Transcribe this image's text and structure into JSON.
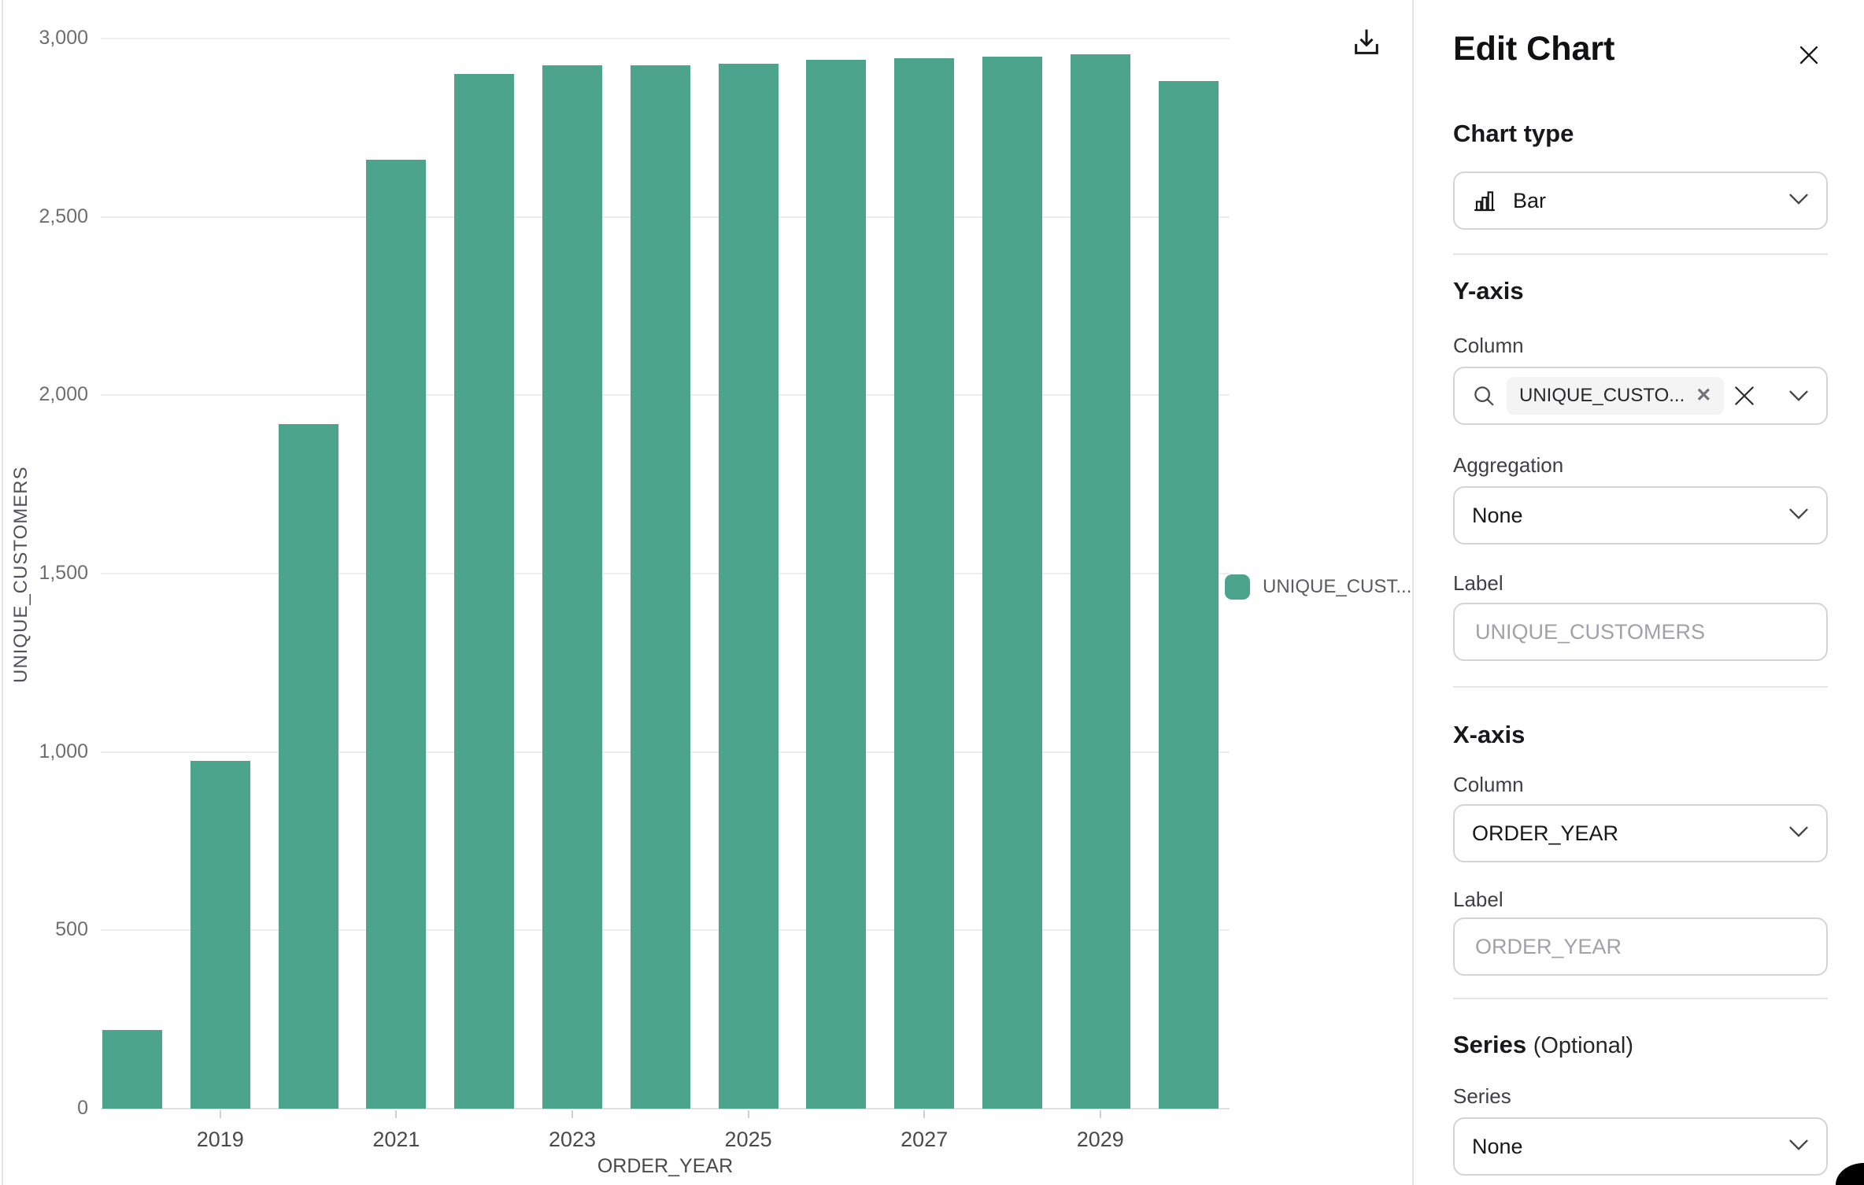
{
  "chart_data": {
    "type": "bar",
    "title": "",
    "xlabel": "ORDER_YEAR",
    "ylabel": "UNIQUE_CUSTOMERS",
    "categories": [
      "2018",
      "2019",
      "2020",
      "2021",
      "2022",
      "2023",
      "2024",
      "2025",
      "2026",
      "2027",
      "2028",
      "2029",
      "2030"
    ],
    "values": [
      220,
      975,
      1920,
      2660,
      2900,
      2925,
      2925,
      2930,
      2940,
      2945,
      2950,
      2955,
      2880
    ],
    "ylim": [
      0,
      3000
    ],
    "yticks": [
      0,
      500,
      1000,
      1500,
      2000,
      2500,
      3000
    ],
    "ytick_labels": [
      "0",
      "500",
      "1,000",
      "1,500",
      "2,000",
      "2,500",
      "3,000"
    ],
    "xticks_shown": [
      "2019",
      "2021",
      "2023",
      "2025",
      "2027",
      "2029"
    ],
    "grid": true,
    "legend_position": "right",
    "bar_color": "#4BA48B",
    "legend": [
      {
        "label": "UNIQUE_CUST...",
        "color": "#4BA48B"
      }
    ]
  },
  "chart_toolbar": {
    "download_icon": "download-icon"
  },
  "panel": {
    "title": "Edit Chart",
    "close_icon": "close-icon",
    "chart_type": {
      "heading": "Chart type",
      "value": "Bar",
      "icon": "bar-chart-icon"
    },
    "y_axis": {
      "heading": "Y-axis",
      "column_label": "Column",
      "column_chip": "UNIQUE_CUSTO...",
      "chip_remove_icon": "x-small-icon",
      "clear_icon": "x-clear-icon",
      "search_icon": "search-icon",
      "aggregation_label": "Aggregation",
      "aggregation_value": "None",
      "label_label": "Label",
      "label_value": "",
      "label_placeholder": "UNIQUE_CUSTOMERS"
    },
    "x_axis": {
      "heading": "X-axis",
      "column_label": "Column",
      "column_value": "ORDER_YEAR",
      "label_label": "Label",
      "label_value": "",
      "label_placeholder": "ORDER_YEAR"
    },
    "series": {
      "heading": "Series",
      "heading_suffix": "(Optional)",
      "series_label": "Series",
      "series_value": "None"
    }
  }
}
